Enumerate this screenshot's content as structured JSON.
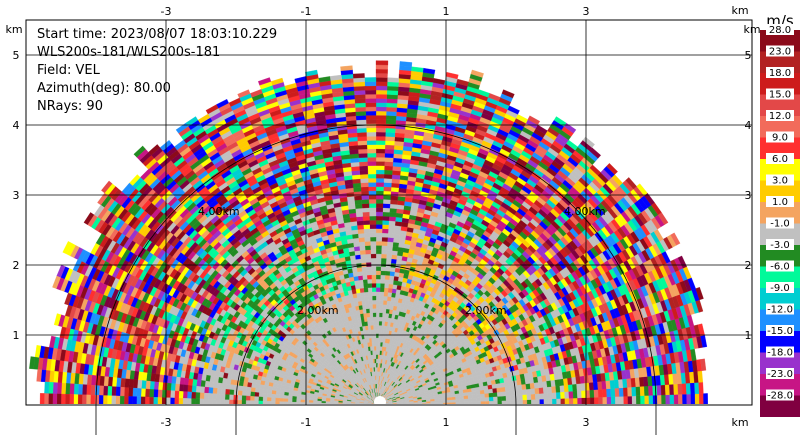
{
  "chart_data": {
    "type": "heatmap",
    "info_lines": [
      "Start time: 2023/08/07 18:03:10.229",
      "WLS200s-181/WLS200s-181",
      "Field: VEL",
      "Azimuth(deg): 80.00",
      "NRays: 90"
    ],
    "x_unit": "km",
    "y_unit": "km",
    "x_ticks": [
      "-3",
      "-1",
      "1",
      "3"
    ],
    "y_ticks": [
      "1",
      "2",
      "3",
      "4",
      "5"
    ],
    "xlim": [
      -4.2,
      4.2
    ],
    "ylim": [
      0,
      6.0
    ],
    "grid": true,
    "range_rings": [
      {
        "radius_km": 2.0,
        "label": "2.00km"
      },
      {
        "radius_km": 4.0,
        "label": "4.00km"
      }
    ],
    "sector_deg": [
      0,
      180
    ],
    "max_range_km": 5.0,
    "colorbar": {
      "unit": "m/s",
      "labels": [
        "28.0",
        "23.0",
        "18.0",
        "15.0",
        "12.0",
        "9.0",
        "6.0",
        "3.0",
        "1.0",
        "-1.0",
        "-3.0",
        "-6.0",
        "-9.0",
        "-12.0",
        "-15.0",
        "-18.0",
        "-23.0",
        "-28.0"
      ],
      "colors": [
        "#8b0a1a",
        "#b22222",
        "#cd1c1c",
        "#e34848",
        "#f26b5b",
        "#ff2f2f",
        "#ffff00",
        "#ffcc00",
        "#f4a460",
        "#c0c0c0",
        "#228b22",
        "#00fa9a",
        "#00ced1",
        "#1e90ff",
        "#0000ff",
        "#9932cc",
        "#c71585",
        "#800040"
      ]
    }
  }
}
